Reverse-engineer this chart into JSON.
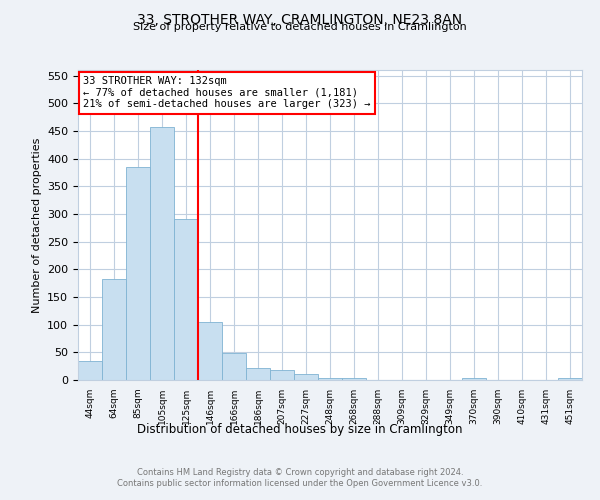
{
  "title": "33, STROTHER WAY, CRAMLINGTON, NE23 8AN",
  "subtitle": "Size of property relative to detached houses in Cramlington",
  "xlabel": "Distribution of detached houses by size in Cramlington",
  "ylabel": "Number of detached properties",
  "bin_labels": [
    "44sqm",
    "64sqm",
    "85sqm",
    "105sqm",
    "125sqm",
    "146sqm",
    "166sqm",
    "186sqm",
    "207sqm",
    "227sqm",
    "248sqm",
    "268sqm",
    "288sqm",
    "309sqm",
    "329sqm",
    "349sqm",
    "370sqm",
    "390sqm",
    "410sqm",
    "431sqm",
    "451sqm"
  ],
  "bar_heights": [
    35,
    183,
    385,
    457,
    290,
    105,
    48,
    22,
    18,
    10,
    3,
    3,
    0,
    0,
    0,
    0,
    3,
    0,
    0,
    0,
    3
  ],
  "bar_color": "#c8dff0",
  "bar_edge_color": "#7fb3d3",
  "vline_x": 5,
  "vline_color": "red",
  "ylim": [
    0,
    560
  ],
  "yticks": [
    0,
    50,
    100,
    150,
    200,
    250,
    300,
    350,
    400,
    450,
    500,
    550
  ],
  "annotation_title": "33 STROTHER WAY: 132sqm",
  "annotation_line1": "← 77% of detached houses are smaller (1,181)",
  "annotation_line2": "21% of semi-detached houses are larger (323) →",
  "footer_line1": "Contains HM Land Registry data © Crown copyright and database right 2024.",
  "footer_line2": "Contains public sector information licensed under the Open Government Licence v3.0.",
  "bg_color": "#eef2f7",
  "plot_bg_color": "#ffffff",
  "grid_color": "#c0cfe0"
}
